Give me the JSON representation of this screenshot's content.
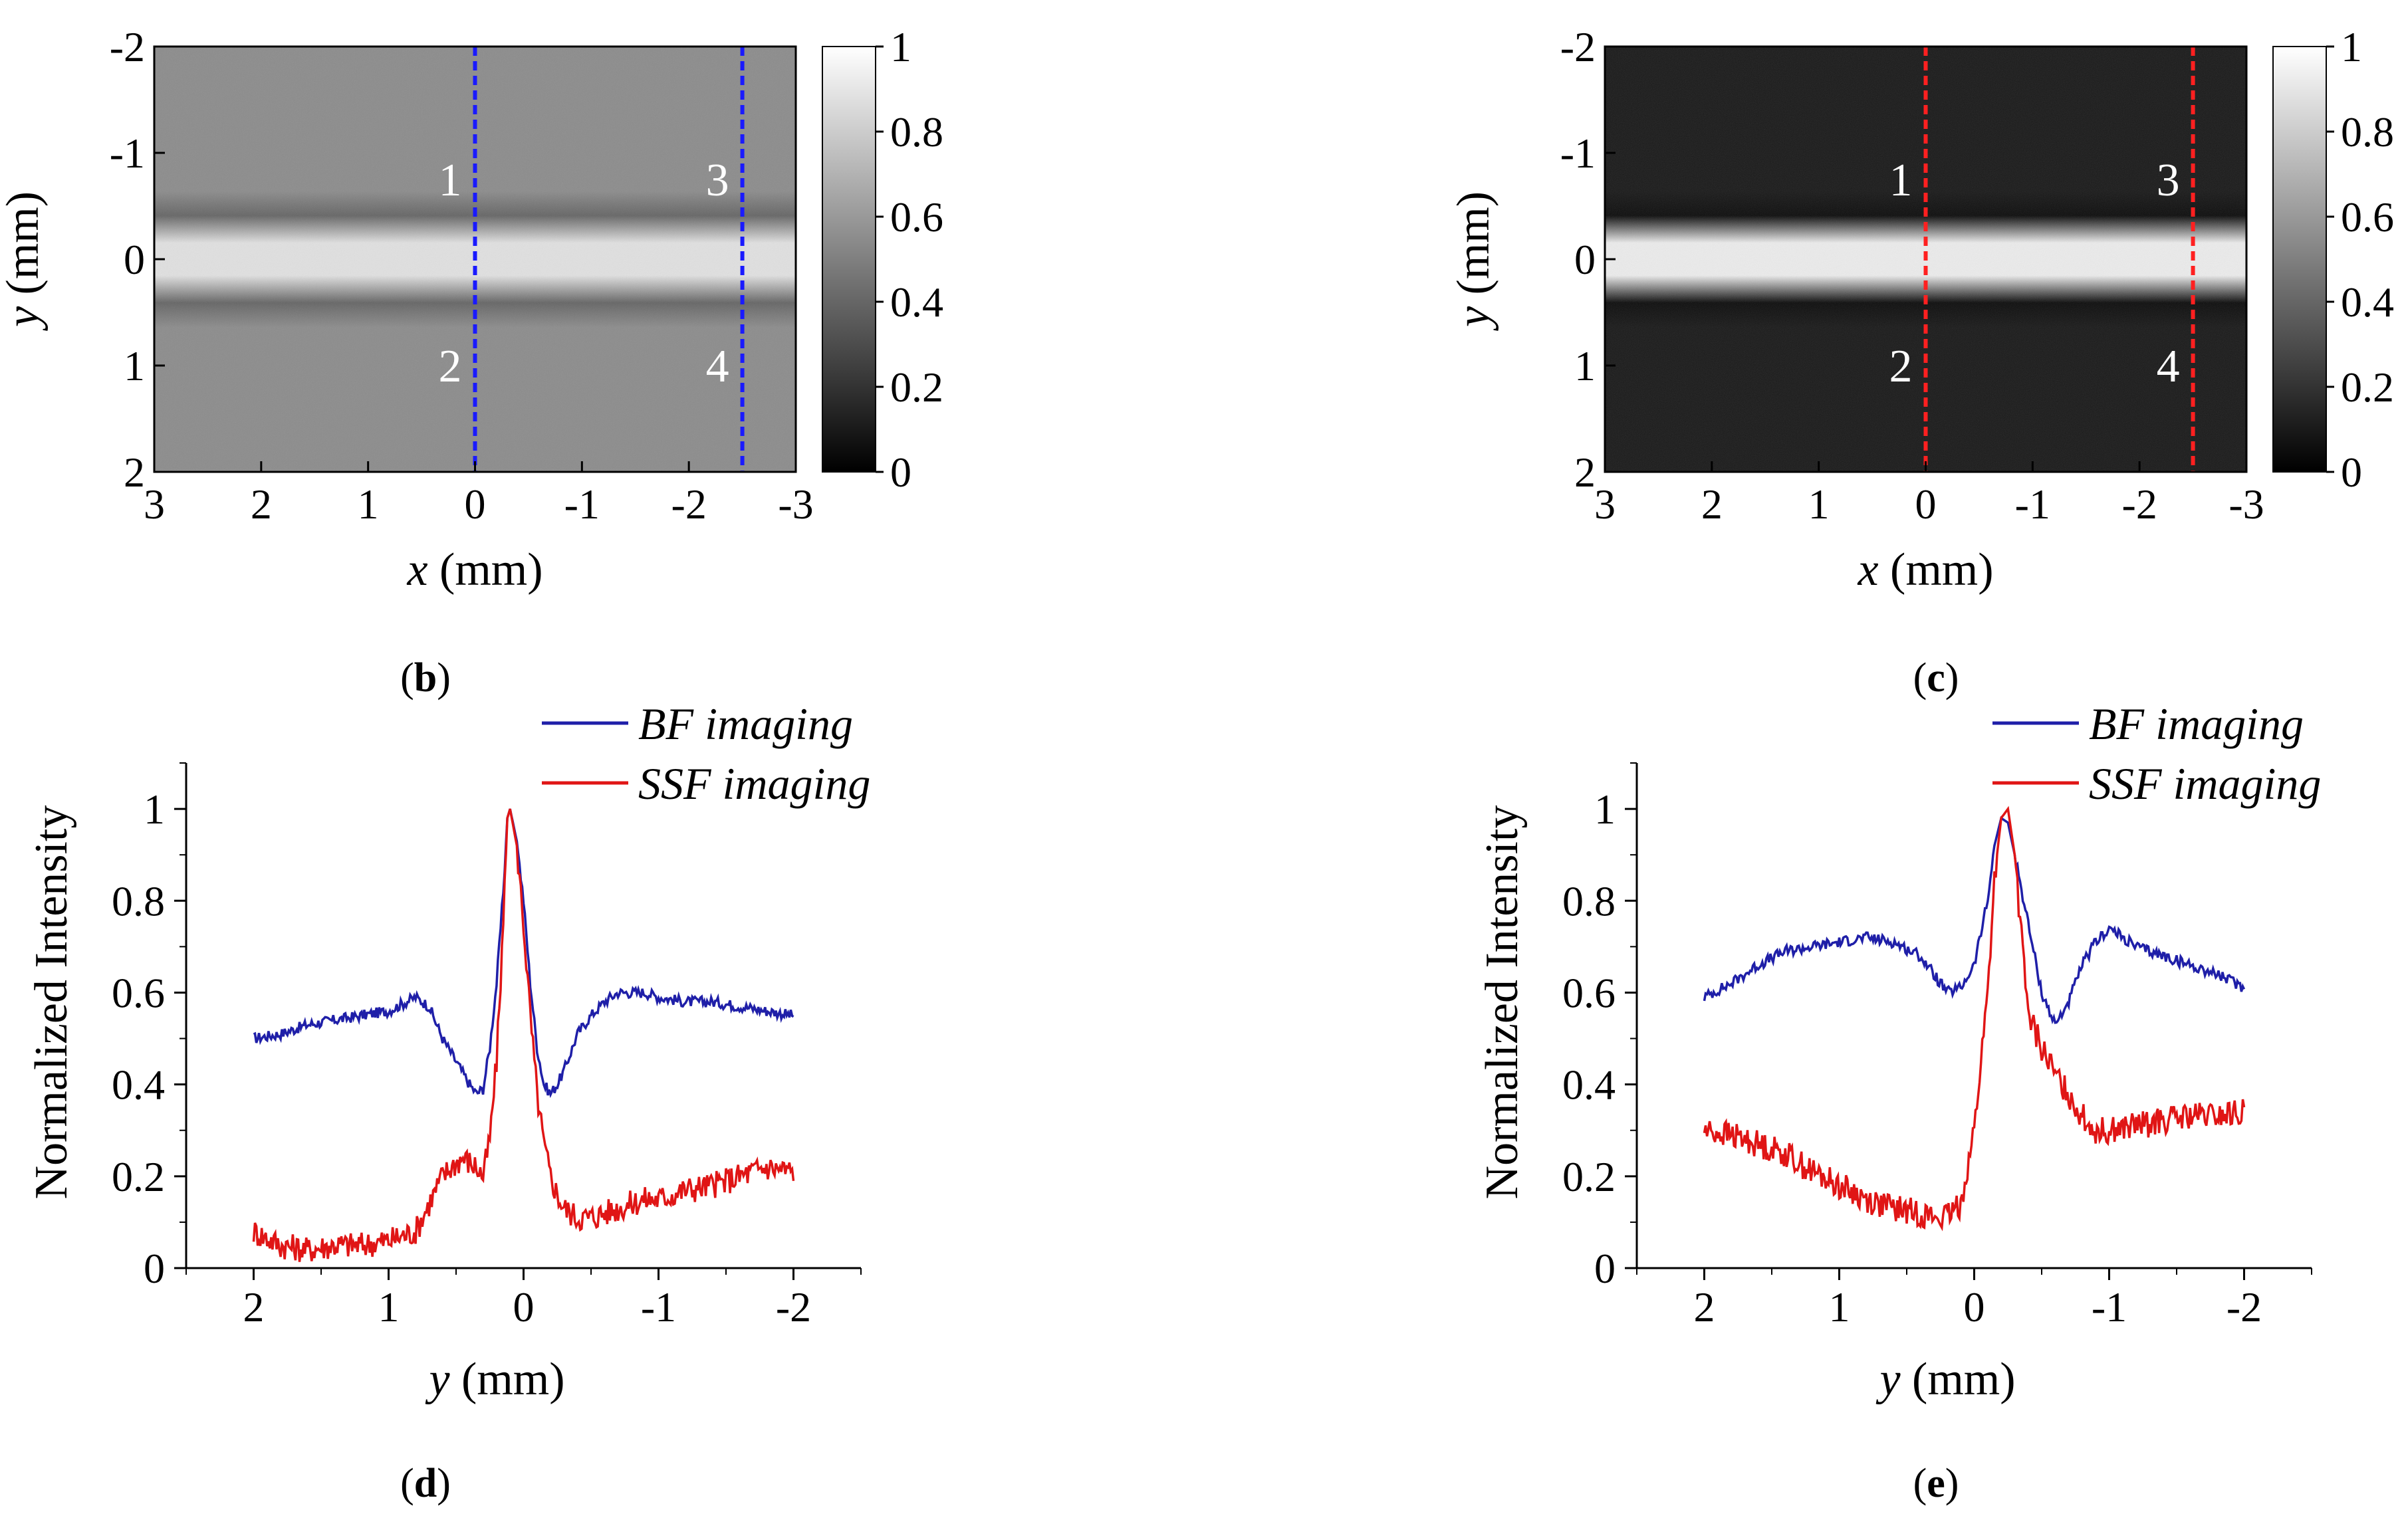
{
  "panels": [
    {
      "id": "b",
      "label": "(b)",
      "letter": "b"
    },
    {
      "id": "c",
      "label": "(c)",
      "letter": "c"
    },
    {
      "id": "d",
      "label": "(d)",
      "letter": "d"
    },
    {
      "id": "e",
      "label": "(e)",
      "letter": "e"
    }
  ],
  "colors": {
    "bf": "#1f1fa8",
    "ssf": "#e01515",
    "line_b": "#1a1aff",
    "line_c": "#ff2020"
  },
  "chart_data": [
    {
      "id": "b",
      "type": "heatmap",
      "title": "",
      "xlabel_var": "x",
      "xlabel_unit": " (mm)",
      "ylabel_var": "y",
      "ylabel_unit": " (mm)",
      "xlim": [
        3,
        -3
      ],
      "ylim": [
        -2,
        2
      ],
      "xticks": [
        "3",
        "2",
        "1",
        "0",
        "-1",
        "-2",
        "-3"
      ],
      "yticks": [
        "-2",
        "-1",
        "0",
        "1",
        "2"
      ],
      "colorbar": {
        "range": [
          0,
          1
        ],
        "ticks": [
          "0",
          "0.2",
          "0.4",
          "0.6",
          "0.8",
          "1"
        ]
      },
      "background_level": 0.55,
      "band": {
        "y_center": 0.0,
        "half_width": 0.2,
        "level": 0.88,
        "dark_edge_level": 0.4
      },
      "cut_lines_x": [
        0,
        -2.5
      ],
      "markers": [
        "1",
        "2",
        "3",
        "4"
      ]
    },
    {
      "id": "c",
      "type": "heatmap",
      "title": "",
      "xlabel_var": "x",
      "xlabel_unit": " (mm)",
      "ylabel_var": "y",
      "ylabel_unit": " (mm)",
      "xlim": [
        3,
        -3
      ],
      "ylim": [
        -2,
        2
      ],
      "xticks": [
        "3",
        "2",
        "1",
        "0",
        "-1",
        "-2",
        "-3"
      ],
      "yticks": [
        "-2",
        "-1",
        "0",
        "1",
        "2"
      ],
      "colorbar": {
        "range": [
          0,
          1
        ],
        "ticks": [
          "0",
          "0.2",
          "0.4",
          "0.6",
          "0.8",
          "1"
        ]
      },
      "background_level": 0.1,
      "band": {
        "y_center": 0.0,
        "half_width": 0.2,
        "level": 0.92,
        "dark_edge_level": 0.05
      },
      "cut_lines_x": [
        0,
        -2.5
      ],
      "markers": [
        "1",
        "2",
        "3",
        "4"
      ]
    },
    {
      "id": "d",
      "type": "line",
      "title": "",
      "xlabel_var": "y",
      "xlabel_unit": " (mm)",
      "ylabel": "Normalized Intensity",
      "xlim": [
        2.5,
        -2.5
      ],
      "ylim": [
        0,
        1.1
      ],
      "xticks": [
        "2",
        "1",
        "0",
        "-1",
        "-2"
      ],
      "yticks": [
        "0",
        "0.2",
        "0.4",
        "0.6",
        "0.8",
        "1"
      ],
      "legend": "top-right",
      "series": [
        {
          "name": "BF imaging",
          "x": [
            2.0,
            1.8,
            1.6,
            1.4,
            1.2,
            1.0,
            0.8,
            0.7,
            0.6,
            0.5,
            0.4,
            0.35,
            0.3,
            0.25,
            0.2,
            0.15,
            0.12,
            0.1,
            0.05,
            0.0,
            -0.05,
            -0.1,
            -0.15,
            -0.2,
            -0.25,
            -0.3,
            -0.35,
            -0.4,
            -0.5,
            -0.6,
            -0.7,
            -0.8,
            -0.9,
            -1.0,
            -1.2,
            -1.4,
            -1.6,
            -1.8,
            -2.0
          ],
          "y": [
            0.5,
            0.51,
            0.53,
            0.54,
            0.55,
            0.56,
            0.59,
            0.57,
            0.5,
            0.45,
            0.4,
            0.38,
            0.39,
            0.48,
            0.62,
            0.82,
            0.98,
            1.0,
            0.93,
            0.8,
            0.62,
            0.48,
            0.4,
            0.38,
            0.4,
            0.43,
            0.47,
            0.51,
            0.55,
            0.58,
            0.6,
            0.6,
            0.6,
            0.59,
            0.58,
            0.58,
            0.57,
            0.56,
            0.55
          ]
        },
        {
          "name": "SSF imaging",
          "x": [
            2.0,
            1.8,
            1.6,
            1.4,
            1.2,
            1.0,
            0.8,
            0.7,
            0.6,
            0.5,
            0.45,
            0.4,
            0.35,
            0.3,
            0.25,
            0.2,
            0.15,
            0.12,
            0.1,
            0.05,
            0.0,
            -0.05,
            -0.1,
            -0.15,
            -0.2,
            -0.25,
            -0.3,
            -0.4,
            -0.5,
            -0.6,
            -0.7,
            -0.8,
            -0.9,
            -1.0,
            -1.2,
            -1.4,
            -1.6,
            -1.8,
            -2.0
          ],
          "y": [
            0.08,
            0.05,
            0.04,
            0.05,
            0.05,
            0.06,
            0.08,
            0.14,
            0.2,
            0.23,
            0.24,
            0.23,
            0.22,
            0.2,
            0.28,
            0.45,
            0.75,
            0.98,
            1.0,
            0.92,
            0.75,
            0.55,
            0.38,
            0.27,
            0.2,
            0.16,
            0.13,
            0.11,
            0.11,
            0.12,
            0.13,
            0.14,
            0.15,
            0.15,
            0.17,
            0.18,
            0.2,
            0.22,
            0.21
          ]
        }
      ]
    },
    {
      "id": "e",
      "type": "line",
      "title": "",
      "xlabel_var": "y",
      "xlabel_unit": " (mm)",
      "ylabel": "Normalized Intensity",
      "xlim": [
        2.5,
        -2.5
      ],
      "ylim": [
        0,
        1.1
      ],
      "xticks": [
        "2",
        "1",
        "0",
        "-1",
        "-2"
      ],
      "yticks": [
        "0",
        "0.2",
        "0.4",
        "0.6",
        "0.8",
        "1"
      ],
      "legend": "top-right",
      "series": [
        {
          "name": "BF imaging",
          "x": [
            2.0,
            1.8,
            1.6,
            1.4,
            1.2,
            1.0,
            0.8,
            0.6,
            0.4,
            0.3,
            0.2,
            0.1,
            0.0,
            -0.1,
            -0.15,
            -0.2,
            -0.25,
            -0.3,
            -0.4,
            -0.5,
            -0.6,
            -0.7,
            -0.8,
            -0.9,
            -1.0,
            -1.1,
            -1.2,
            -1.4,
            -1.6,
            -1.8,
            -2.0
          ],
          "y": [
            0.59,
            0.62,
            0.66,
            0.69,
            0.7,
            0.71,
            0.72,
            0.71,
            0.68,
            0.64,
            0.6,
            0.61,
            0.66,
            0.8,
            0.92,
            0.98,
            0.97,
            0.9,
            0.75,
            0.6,
            0.53,
            0.58,
            0.66,
            0.71,
            0.74,
            0.72,
            0.7,
            0.68,
            0.66,
            0.64,
            0.61
          ]
        },
        {
          "name": "SSF imaging",
          "x": [
            2.0,
            1.8,
            1.6,
            1.4,
            1.2,
            1.0,
            0.8,
            0.6,
            0.4,
            0.3,
            0.2,
            0.1,
            0.0,
            -0.1,
            -0.15,
            -0.2,
            -0.25,
            -0.3,
            -0.35,
            -0.4,
            -0.5,
            -0.6,
            -0.7,
            -0.8,
            -0.9,
            -1.0,
            -1.2,
            -1.4,
            -1.6,
            -1.8,
            -2.0
          ],
          "y": [
            0.3,
            0.29,
            0.27,
            0.25,
            0.21,
            0.18,
            0.15,
            0.13,
            0.12,
            0.11,
            0.11,
            0.14,
            0.3,
            0.6,
            0.85,
            0.98,
            1.0,
            0.9,
            0.72,
            0.55,
            0.48,
            0.42,
            0.38,
            0.33,
            0.3,
            0.3,
            0.31,
            0.32,
            0.33,
            0.33,
            0.34
          ]
        }
      ]
    }
  ]
}
